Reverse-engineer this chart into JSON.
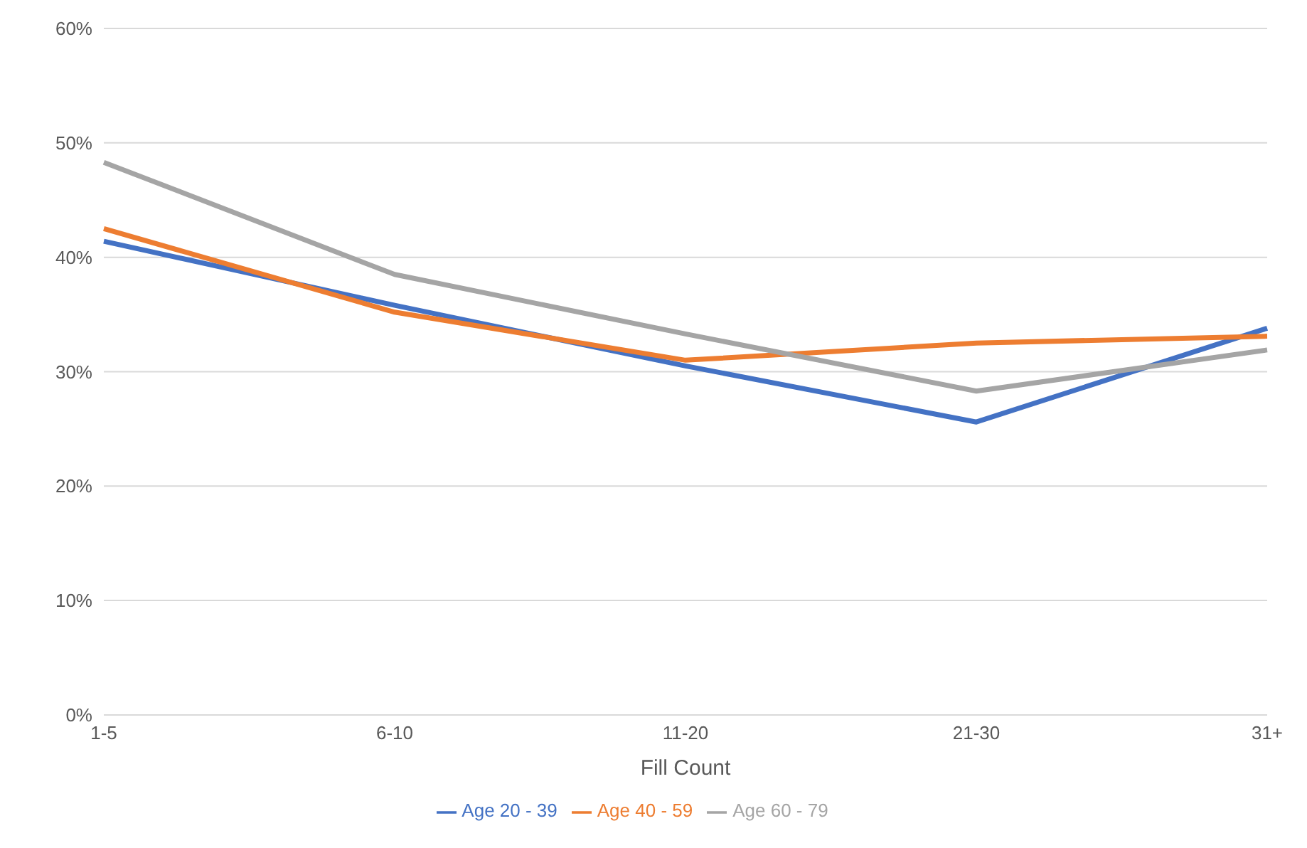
{
  "chart_data": {
    "type": "line",
    "xlabel": "Fill Count",
    "categories": [
      "1-5",
      "6-10",
      "11-20",
      "21-30",
      "31+"
    ],
    "series": [
      {
        "name": "Age 20 - 39",
        "color": "#4472c4",
        "values": [
          41.4,
          35.8,
          30.5,
          25.6,
          33.8
        ]
      },
      {
        "name": "Age 40 - 59",
        "color": "#ed7d31",
        "values": [
          42.5,
          35.2,
          31.0,
          32.5,
          33.1
        ]
      },
      {
        "name": "Age 60 - 79",
        "color": "#a5a5a5",
        "values": [
          48.3,
          38.5,
          33.3,
          28.3,
          31.9
        ]
      }
    ],
    "ylim": [
      0,
      60
    ],
    "yticks": [
      {
        "value": 0,
        "label": "0%"
      },
      {
        "value": 10,
        "label": "10%"
      },
      {
        "value": 20,
        "label": "20%"
      },
      {
        "value": 30,
        "label": "30%"
      },
      {
        "value": 40,
        "label": "40%"
      },
      {
        "value": 50,
        "label": "50%"
      },
      {
        "value": 60,
        "label": "60%"
      }
    ],
    "grid": "y",
    "legend": "bottom",
    "marker": "none",
    "line_style": "solid"
  }
}
